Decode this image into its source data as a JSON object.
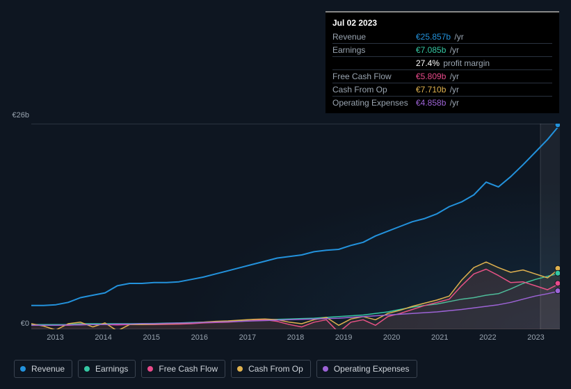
{
  "chart": {
    "type": "line",
    "background_color": "#0e1621",
    "plot_background_gradient": [
      "#0e1621",
      "#12273a"
    ],
    "grid_color": "#2a3340",
    "text_color": "#9aa5b1",
    "ymin": 0,
    "ymax": 26,
    "y_labels": [
      {
        "value": 0,
        "text": "€0"
      },
      {
        "value": 26,
        "text": "€26b"
      }
    ],
    "x_years": [
      2013,
      2014,
      2015,
      2016,
      2017,
      2018,
      2019,
      2020,
      2021,
      2022,
      2023
    ],
    "x_start": 2012.5,
    "x_end": 2023.5,
    "cursor_x": 2023.5,
    "series": [
      {
        "key": "revenue",
        "label": "Revenue",
        "color": "#2392dc",
        "width": 2,
        "values": [
          3.0,
          3.0,
          3.1,
          3.4,
          4.0,
          4.3,
          4.6,
          5.5,
          5.8,
          5.8,
          5.9,
          5.9,
          6.0,
          6.3,
          6.6,
          7.0,
          7.4,
          7.8,
          8.2,
          8.6,
          9.0,
          9.2,
          9.4,
          9.8,
          10.0,
          10.1,
          10.6,
          11.0,
          11.8,
          12.4,
          13.0,
          13.6,
          14.0,
          14.6,
          15.5,
          16.1,
          17.0,
          18.6,
          18.0,
          19.3,
          20.8,
          22.4,
          24.0,
          25.86
        ]
      },
      {
        "key": "earnings",
        "label": "Earnings",
        "color": "#35c7a3",
        "width": 1.5,
        "values": [
          0.6,
          0.6,
          0.6,
          0.6,
          0.7,
          0.7,
          0.7,
          0.7,
          0.7,
          0.72,
          0.74,
          0.78,
          0.8,
          0.85,
          0.9,
          0.95,
          1.0,
          1.05,
          1.1,
          1.2,
          1.25,
          1.3,
          1.35,
          1.4,
          1.5,
          1.6,
          1.7,
          1.8,
          2.0,
          2.2,
          2.5,
          2.8,
          3.0,
          3.2,
          3.5,
          3.8,
          4.0,
          4.3,
          4.5,
          5.1,
          5.8,
          6.3,
          6.7,
          7.09
        ]
      },
      {
        "key": "free_cash_flow",
        "label": "Free Cash Flow",
        "color": "#e84a8a",
        "width": 1.5,
        "values": [
          0.5,
          0.5,
          0.5,
          0.5,
          0.6,
          0.6,
          0.6,
          0.55,
          0.6,
          0.6,
          0.6,
          0.62,
          0.65,
          0.7,
          0.8,
          0.85,
          0.9,
          1.0,
          1.1,
          1.2,
          1.0,
          0.6,
          0.3,
          0.9,
          1.2,
          -0.4,
          0.9,
          1.2,
          0.5,
          1.6,
          2.0,
          2.5,
          3.0,
          3.4,
          3.8,
          5.5,
          7.0,
          7.6,
          6.8,
          5.9,
          6.0,
          5.5,
          5.0,
          5.81
        ]
      },
      {
        "key": "cash_from_op",
        "label": "Cash From Op",
        "color": "#e0b24f",
        "width": 1.5,
        "values": [
          0.7,
          0.4,
          -0.1,
          0.7,
          0.9,
          0.3,
          0.8,
          -0.2,
          0.6,
          0.6,
          0.65,
          0.7,
          0.75,
          0.8,
          0.9,
          1.0,
          1.05,
          1.15,
          1.25,
          1.3,
          1.2,
          0.9,
          0.7,
          1.2,
          1.5,
          0.5,
          1.3,
          1.6,
          1.2,
          2.0,
          2.4,
          2.9,
          3.3,
          3.7,
          4.2,
          6.2,
          7.8,
          8.5,
          7.8,
          7.2,
          7.5,
          7.0,
          6.5,
          7.71
        ]
      },
      {
        "key": "operating_expenses",
        "label": "Operating Expenses",
        "color": "#9d63d6",
        "width": 1.5,
        "values": [
          0.5,
          0.5,
          0.5,
          0.55,
          0.55,
          0.6,
          0.6,
          0.65,
          0.65,
          0.7,
          0.7,
          0.75,
          0.78,
          0.8,
          0.85,
          0.9,
          0.95,
          1.0,
          1.05,
          1.1,
          1.15,
          1.2,
          1.25,
          1.3,
          1.35,
          1.4,
          1.5,
          1.6,
          1.7,
          1.8,
          1.9,
          2.0,
          2.1,
          2.2,
          2.35,
          2.5,
          2.7,
          2.9,
          3.1,
          3.4,
          3.8,
          4.2,
          4.5,
          4.86
        ]
      }
    ],
    "end_markers": [
      {
        "color": "#2392dc",
        "value": 25.86
      },
      {
        "color": "#e0b24f",
        "value": 7.71
      },
      {
        "color": "#35c7a3",
        "value": 7.09
      },
      {
        "color": "#e84a8a",
        "value": 5.81
      },
      {
        "color": "#9d63d6",
        "value": 4.86
      }
    ]
  },
  "tooltip": {
    "date": "Jul 02 2023",
    "rows": [
      {
        "label": "Revenue",
        "value": "€25.857b",
        "unit": "/yr",
        "color": "#2392dc"
      },
      {
        "label": "Earnings",
        "value": "€7.085b",
        "unit": "/yr",
        "color": "#35c7a3"
      },
      {
        "label": "",
        "value": "27.4%",
        "unit": "profit margin",
        "color": "#ffffff"
      },
      {
        "label": "Free Cash Flow",
        "value": "€5.809b",
        "unit": "/yr",
        "color": "#e84a8a"
      },
      {
        "label": "Cash From Op",
        "value": "€7.710b",
        "unit": "/yr",
        "color": "#e0b24f"
      },
      {
        "label": "Operating Expenses",
        "value": "€4.858b",
        "unit": "/yr",
        "color": "#9d63d6"
      }
    ]
  },
  "legend": [
    {
      "label": "Revenue",
      "color": "#2392dc"
    },
    {
      "label": "Earnings",
      "color": "#35c7a3"
    },
    {
      "label": "Free Cash Flow",
      "color": "#e84a8a"
    },
    {
      "label": "Cash From Op",
      "color": "#e0b24f"
    },
    {
      "label": "Operating Expenses",
      "color": "#9d63d6"
    }
  ]
}
